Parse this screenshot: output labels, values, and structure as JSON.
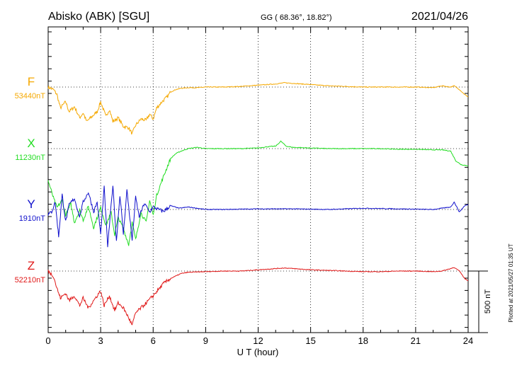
{
  "header": {
    "station": "Abisko (ABK)  [SGU]",
    "coords": "GG ( 68.36°,  18.82°)",
    "date": "2021/04/26"
  },
  "footnote": "Plotted at 2021/05/27 01:35 UT",
  "scale_bar_label": "500 nT",
  "chart_data": {
    "type": "line",
    "title": "Abisko (ABK)  [SGU]",
    "xlabel": "U T (hour)",
    "ylabel": "",
    "xlim": [
      0,
      24
    ],
    "xticks": [
      0,
      3,
      6,
      9,
      12,
      15,
      18,
      21,
      24
    ],
    "grid": "dotted vertical lines every 3 hours; dotted baseline per component",
    "scale_bar_nT": 500,
    "series": [
      {
        "name": "F",
        "baseline_label": "53440nT",
        "baseline": 53440,
        "color": "#f5a800",
        "x": [
          0,
          0.3,
          0.5,
          0.7,
          1,
          1.2,
          1.5,
          1.8,
          2,
          2.2,
          2.5,
          2.8,
          3,
          3.3,
          3.5,
          3.7,
          4,
          4.3,
          4.6,
          4.8,
          5,
          5.3,
          5.6,
          5.8,
          6,
          6.2,
          6.5,
          6.8,
          7,
          7.3,
          7.6,
          8,
          8.5,
          9,
          10,
          11,
          12,
          12.5,
          13,
          13.5,
          14,
          15,
          16,
          17,
          18,
          19,
          20,
          21,
          22,
          22.5,
          23,
          23.2,
          23.5,
          23.8,
          24
        ],
        "y": [
          0,
          -20,
          -60,
          -170,
          -120,
          -200,
          -160,
          -250,
          -210,
          -280,
          -240,
          -200,
          -120,
          -240,
          -180,
          -280,
          -250,
          -320,
          -330,
          -380,
          -310,
          -260,
          -270,
          -220,
          -260,
          -170,
          -120,
          -80,
          -40,
          -20,
          -10,
          -5,
          -5,
          0,
          0,
          5,
          15,
          20,
          25,
          35,
          30,
          20,
          10,
          5,
          0,
          0,
          0,
          0,
          -5,
          10,
          0,
          10,
          -20,
          -60,
          -80
        ]
      },
      {
        "name": "X",
        "baseline_label": "11230nT",
        "baseline": 11230,
        "color": "#22dd22",
        "x": [
          0,
          0.3,
          0.5,
          0.8,
          1,
          1.3,
          1.5,
          1.8,
          2,
          2.3,
          2.6,
          3,
          3.3,
          3.6,
          3.8,
          4,
          4.3,
          4.6,
          4.8,
          5,
          5.3,
          5.6,
          5.8,
          6,
          6.2,
          6.5,
          6.8,
          7,
          7.3,
          7.6,
          8,
          8.5,
          9,
          10,
          11,
          12,
          12.5,
          13,
          13.3,
          13.6,
          14,
          15,
          16,
          17,
          18,
          19,
          20,
          21,
          22,
          22.5,
          23,
          23.3,
          23.6,
          24
        ],
        "y": [
          -260,
          -400,
          -480,
          -420,
          -540,
          -450,
          -600,
          -500,
          -580,
          -470,
          -640,
          -480,
          -620,
          -520,
          -700,
          -560,
          -650,
          -780,
          -600,
          -740,
          -520,
          -600,
          -420,
          -540,
          -380,
          -260,
          -150,
          -80,
          -40,
          -20,
          0,
          10,
          0,
          0,
          0,
          5,
          15,
          20,
          60,
          20,
          10,
          5,
          0,
          0,
          0,
          0,
          -5,
          -5,
          -10,
          -10,
          -20,
          -100,
          -130,
          -140
        ]
      },
      {
        "name": "Y",
        "baseline_label": "1910nT",
        "baseline": 1910,
        "color": "#1010cc",
        "x": [
          0,
          0.2,
          0.4,
          0.6,
          0.8,
          1,
          1.2,
          1.5,
          1.8,
          2,
          2.3,
          2.6,
          2.8,
          3,
          3.2,
          3.4,
          3.7,
          3.9,
          4.1,
          4.3,
          4.5,
          4.8,
          5,
          5.2,
          5.5,
          5.8,
          6,
          6.3,
          6.6,
          7,
          7.5,
          8,
          8.5,
          9,
          10,
          12,
          14,
          16,
          18,
          20,
          22,
          22.5,
          23,
          23.2,
          23.5,
          23.8,
          24
        ],
        "y": [
          -40,
          -20,
          60,
          -220,
          120,
          -100,
          40,
          90,
          -60,
          60,
          140,
          -20,
          60,
          -200,
          180,
          -300,
          200,
          -260,
          120,
          -200,
          160,
          -250,
          100,
          -60,
          50,
          -20,
          20,
          0,
          -15,
          30,
          10,
          20,
          10,
          0,
          0,
          5,
          5,
          0,
          10,
          5,
          0,
          10,
          20,
          60,
          -20,
          30,
          40
        ]
      },
      {
        "name": "Z",
        "baseline_label": "52210nT",
        "baseline": 52210,
        "color": "#e01818",
        "x": [
          0,
          0.3,
          0.5,
          0.7,
          1,
          1.2,
          1.5,
          1.8,
          2,
          2.3,
          2.6,
          3,
          3.2,
          3.5,
          3.8,
          4,
          4.3,
          4.6,
          4.8,
          5,
          5.3,
          5.6,
          6,
          6.3,
          6.6,
          7,
          7.3,
          7.6,
          8,
          9,
          10,
          11,
          12,
          12.5,
          13,
          13.5,
          14,
          15,
          16,
          17,
          18,
          19,
          20,
          21,
          22,
          22.5,
          23,
          23.2,
          23.5,
          23.8,
          24
        ],
        "y": [
          0,
          -40,
          -140,
          -220,
          -180,
          -240,
          -200,
          -280,
          -220,
          -300,
          -240,
          -160,
          -280,
          -200,
          -320,
          -260,
          -300,
          -380,
          -440,
          -340,
          -300,
          -260,
          -200,
          -150,
          -100,
          -60,
          -40,
          -20,
          -10,
          -5,
          0,
          0,
          10,
          15,
          20,
          25,
          20,
          10,
          5,
          0,
          -5,
          -5,
          0,
          0,
          -5,
          0,
          20,
          30,
          0,
          -60,
          -80
        ]
      }
    ]
  }
}
